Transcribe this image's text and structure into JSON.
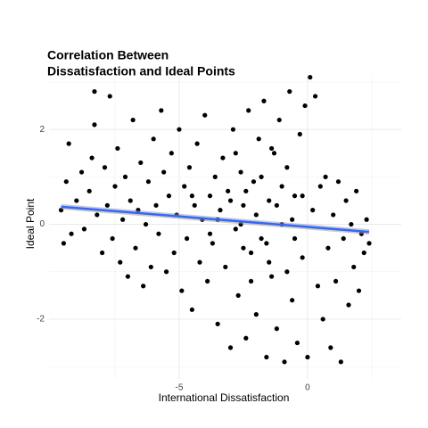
{
  "chart_data": {
    "type": "scatter",
    "title": [
      "Correlation Between",
      "Dissatisfaction and Ideal Points"
    ],
    "x_label": "International Dissatisfaction",
    "y_label": "Ideal Point",
    "xlim": [
      -10.07,
      3.65
    ],
    "ylim": [
      -3.26,
      3.15
    ],
    "xticks": [
      -5,
      0
    ],
    "yticks": [
      -2,
      0,
      2
    ],
    "x_minor_ticks": [
      -7.5,
      2.5
    ],
    "y_minor_ticks": [
      -3,
      -1,
      1,
      3
    ],
    "grid": true,
    "color": "#000000",
    "x": [
      -9.6,
      -9.5,
      -9.4,
      -9.3,
      -9.2,
      -9.0,
      -8.8,
      -8.7,
      -8.5,
      -8.4,
      -8.3,
      -8.3,
      -8.2,
      -8.0,
      -7.9,
      -7.8,
      -7.7,
      -7.6,
      -7.5,
      -7.4,
      -7.3,
      -7.2,
      -7.1,
      -7.0,
      -6.9,
      -6.8,
      -6.7,
      -6.6,
      -6.5,
      -6.4,
      -6.3,
      -6.2,
      -6.1,
      -6.0,
      -5.9,
      -5.8,
      -5.7,
      -5.6,
      -5.5,
      -5.4,
      -5.3,
      -5.2,
      -5.1,
      -5.0,
      -4.9,
      -4.8,
      -4.7,
      -4.6,
      -4.5,
      -4.4,
      -4.3,
      -4.2,
      -4.1,
      -4.0,
      -3.9,
      -3.8,
      -3.7,
      -3.6,
      -3.5,
      -3.4,
      -3.3,
      -3.2,
      -3.1,
      -3.0,
      -2.9,
      -2.8,
      -2.7,
      -2.6,
      -2.5,
      -2.4,
      -2.3,
      -2.2,
      -2.1,
      -2.0,
      -1.9,
      -1.8,
      -1.7,
      -1.6,
      -1.5,
      -1.4,
      -1.3,
      -1.2,
      -1.1,
      -1.0,
      -0.9,
      -0.8,
      -0.7,
      -0.6,
      -0.5,
      -0.4,
      -0.3,
      -0.2,
      -0.1,
      0.0,
      0.1,
      0.2,
      0.3,
      0.4,
      0.5,
      0.6,
      0.7,
      0.8,
      0.9,
      1.0,
      1.1,
      1.2,
      1.3,
      1.4,
      1.5,
      1.6,
      1.7,
      1.8,
      1.9,
      2.0,
      2.1,
      2.2,
      2.3,
      2.4,
      -3.5,
      -3.0,
      -2.5,
      -2.0,
      -1.5,
      -1.0,
      -0.5,
      -2.8,
      -1.8,
      -0.8,
      -2.2,
      -1.2,
      -0.2,
      -3.8,
      -4.5,
      -2.6,
      -1.6,
      -0.6,
      -1.4,
      -2.4
    ],
    "values": [
      0.3,
      -0.4,
      0.9,
      1.7,
      -0.2,
      0.5,
      1.1,
      -0.1,
      0.7,
      1.4,
      2.8,
      2.1,
      0.2,
      -0.6,
      1.2,
      0.4,
      2.7,
      -0.3,
      0.8,
      1.6,
      -0.8,
      0.1,
      1.0,
      -1.1,
      0.5,
      2.2,
      -0.5,
      0.3,
      1.3,
      -1.3,
      0.0,
      0.9,
      -0.9,
      1.8,
      0.4,
      -0.2,
      2.4,
      1.1,
      -1.0,
      0.6,
      1.5,
      -0.6,
      0.2,
      2.0,
      -1.4,
      0.8,
      -0.3,
      1.2,
      -1.8,
      0.4,
      1.7,
      -0.8,
      0.1,
      2.3,
      -1.2,
      0.6,
      -0.4,
      1.0,
      -2.1,
      0.3,
      1.4,
      -0.9,
      0.7,
      -2.6,
      2.0,
      -0.1,
      -1.5,
      1.1,
      0.4,
      -2.4,
      2.4,
      -0.6,
      0.9,
      -1.9,
      1.8,
      -0.3,
      2.6,
      -2.8,
      0.5,
      -1.1,
      1.5,
      -2.2,
      2.2,
      0.0,
      -2.9,
      1.2,
      2.8,
      -1.6,
      0.6,
      -2.5,
      1.9,
      -0.7,
      2.5,
      -2.8,
      3.1,
      0.3,
      2.7,
      -1.3,
      0.8,
      -2.0,
      1.0,
      -0.5,
      -2.6,
      0.2,
      -1.2,
      0.9,
      -2.9,
      -0.3,
      0.5,
      -1.7,
      0.0,
      -0.9,
      0.7,
      -1.4,
      -0.2,
      -0.6,
      0.1,
      -0.4,
      0.1,
      0.5,
      -0.5,
      0.2,
      -0.8,
      0.8,
      -0.3,
      1.5,
      1.0,
      -1.0,
      -1.2,
      0.4,
      0.6,
      -0.2,
      0.6,
      0.0,
      -0.4,
      0.1,
      1.6,
      0.7
    ],
    "trend": {
      "x": [
        -9.6,
        2.4
      ],
      "values": [
        0.37,
        -0.16
      ],
      "color": "#3366ff"
    }
  }
}
